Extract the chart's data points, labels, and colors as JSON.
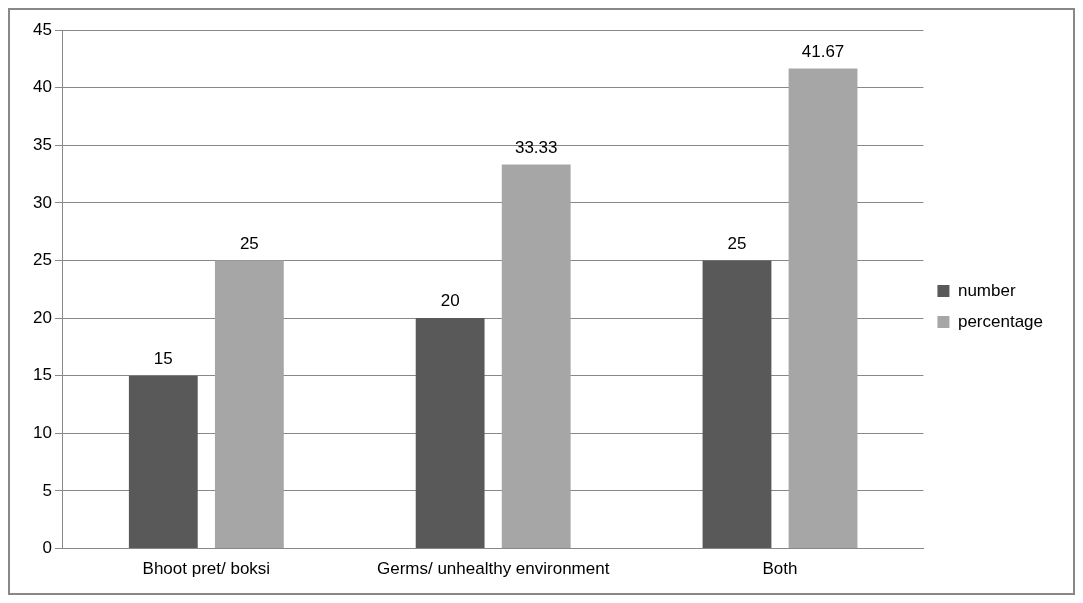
{
  "chart_data": {
    "type": "bar",
    "categories": [
      "Bhoot pret/ boksi",
      "Germs/ unhealthy environment",
      "Both"
    ],
    "series": [
      {
        "name": "number",
        "color": "#595959",
        "values": [
          15,
          20,
          25
        ]
      },
      {
        "name": "percentage",
        "color": "#a6a6a6",
        "values": [
          25,
          33.33,
          41.67
        ]
      }
    ],
    "ylim": [
      0,
      45
    ],
    "yticks": [
      0,
      5,
      10,
      15,
      20,
      25,
      30,
      35,
      40,
      45
    ],
    "grid": "y",
    "legend": "right",
    "data_labels": true
  }
}
